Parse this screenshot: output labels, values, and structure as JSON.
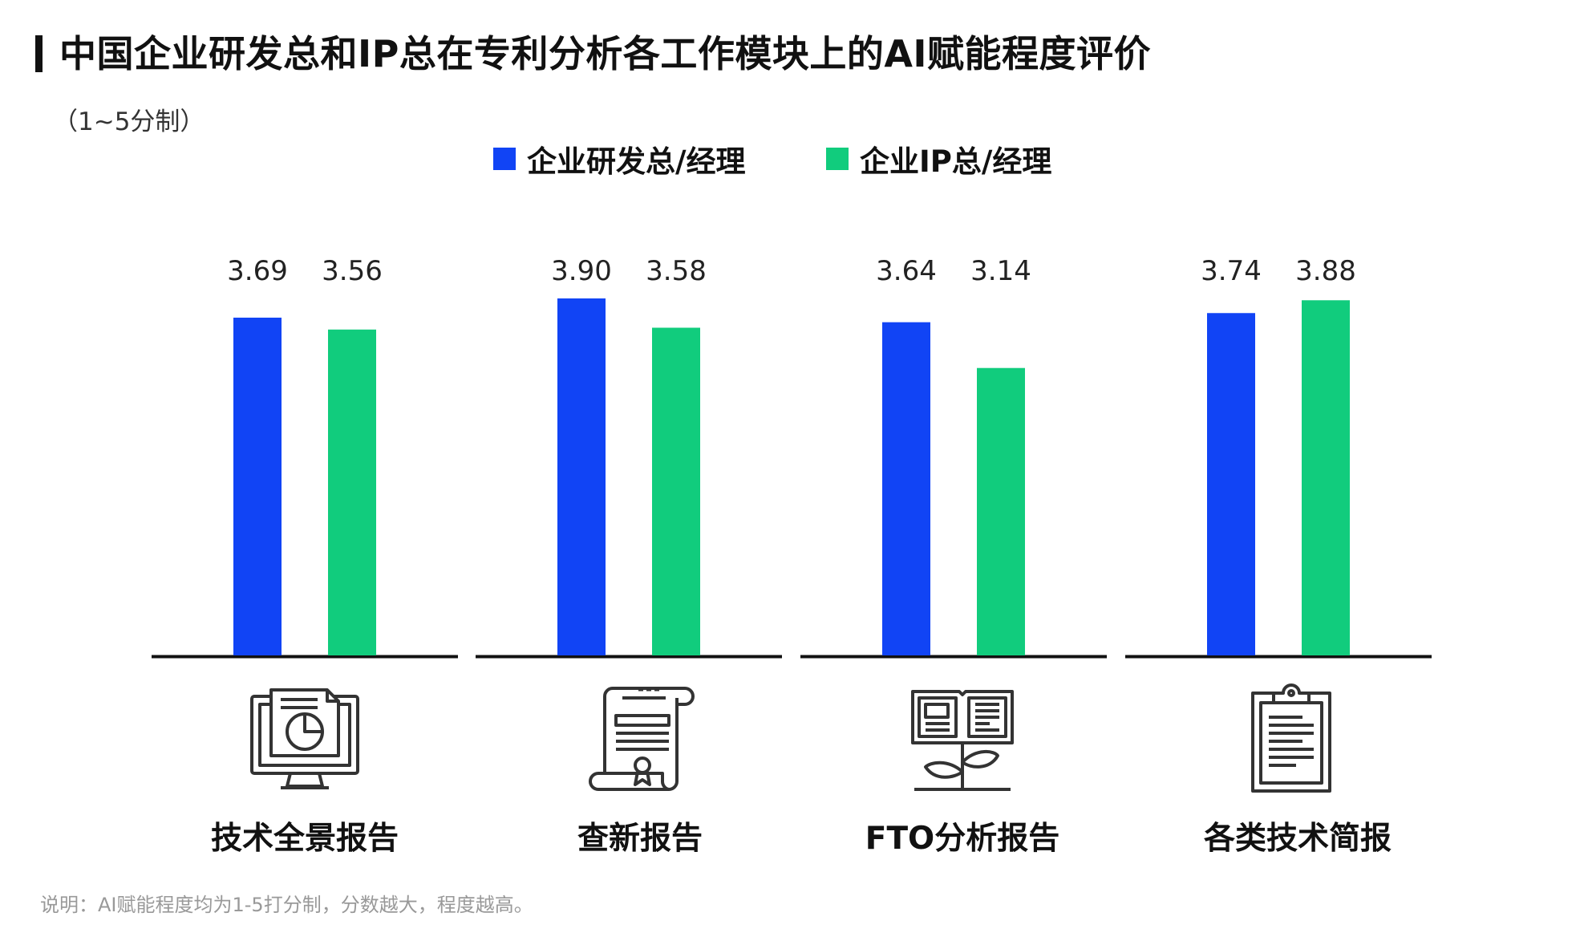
{
  "title": "中国企业研发总和IP总在专利分析各工作模块上的AI赋能程度评价",
  "unit_label": "（1~5分制）",
  "note": "说明：AI赋能程度均为1-5打分制，分数越大，程度越高。",
  "colors": {
    "series_rd": "#1144f5",
    "series_ip": "#11cc7d",
    "axis": "#111111"
  },
  "chart_data": {
    "type": "bar",
    "categories": [
      "技术全景报告",
      "查新报告",
      "FTO分析报告",
      "各类技术简报"
    ],
    "series": [
      {
        "name": "企业研发总/经理",
        "values": [
          3.69,
          3.9,
          3.64,
          3.74
        ],
        "labels": [
          "3.69",
          "3.90",
          "3.64",
          "3.74"
        ]
      },
      {
        "name": "企业IP总/经理",
        "values": [
          3.56,
          3.58,
          3.14,
          3.88
        ],
        "labels": [
          "3.56",
          "3.58",
          "3.14",
          "3.88"
        ]
      }
    ],
    "ylim": [
      0,
      3.9
    ],
    "grid": false,
    "legend_position": "top-center"
  },
  "category_icons": [
    "monitor-report-icon",
    "certificate-scroll-icon",
    "book-plant-icon",
    "clipboard-icon"
  ]
}
